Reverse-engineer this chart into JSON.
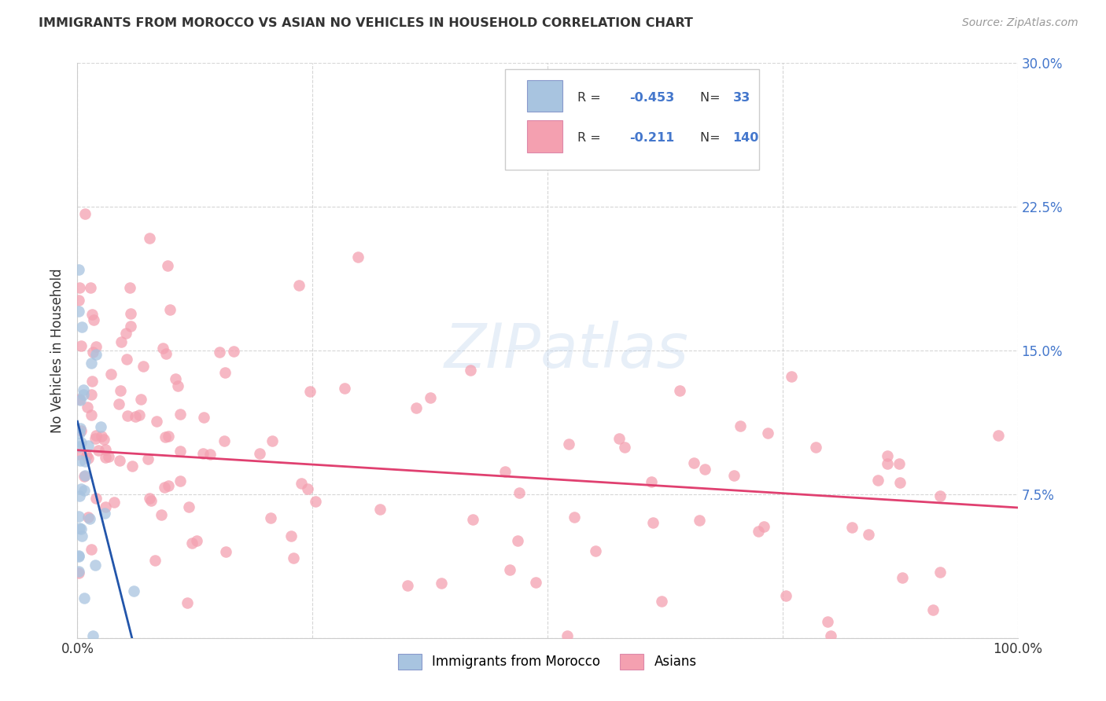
{
  "title": "IMMIGRANTS FROM MOROCCO VS ASIAN NO VEHICLES IN HOUSEHOLD CORRELATION CHART",
  "source": "Source: ZipAtlas.com",
  "ylabel": "No Vehicles in Household",
  "watermark": "ZIPatlas",
  "xlim": [
    0,
    1.0
  ],
  "ylim": [
    0,
    0.3
  ],
  "morocco_color": "#a8c4e0",
  "morocco_color_line": "#2255aa",
  "asians_color": "#f4a0b0",
  "asians_color_line": "#e04070",
  "morocco_R": -0.453,
  "morocco_N": 33,
  "asians_R": -0.211,
  "asians_N": 140,
  "background_color": "#ffffff",
  "grid_color": "#cccccc",
  "ytick_color": "#4477cc",
  "xtick_color": "#333333",
  "title_color": "#333333",
  "source_color": "#999999",
  "ylabel_color": "#333333"
}
